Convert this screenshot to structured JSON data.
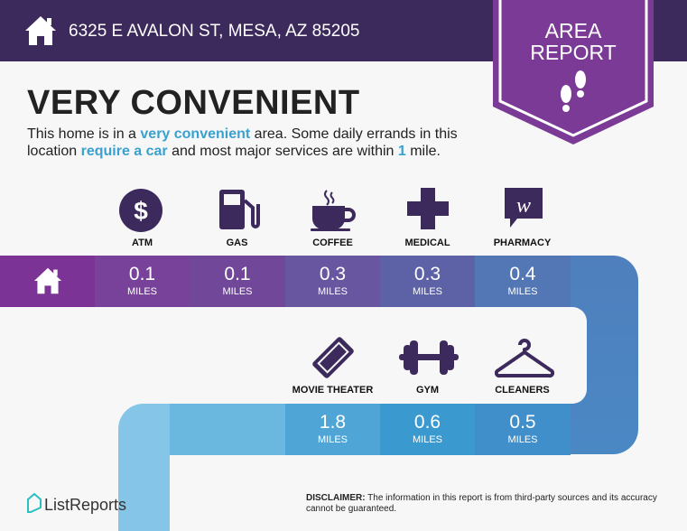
{
  "header": {
    "address": "6325 E AVALON ST, MESA, AZ 85205",
    "icon": "house-icon",
    "badge_line1": "AREA",
    "badge_line2": "REPORT",
    "badge_icon": "footprints-icon"
  },
  "main": {
    "title": "VERY CONVENIENT",
    "desc": {
      "p1": "This home is in a ",
      "h1": "very convenient",
      "p2": " area. Some daily errands in this location ",
      "h2": "require a car",
      "p3": " and most major services are within ",
      "h3": "1",
      "p4": " mile."
    }
  },
  "row1": [
    {
      "label": "ATM",
      "value": "0.1",
      "unit": "MILES",
      "icon": "dollar-icon"
    },
    {
      "label": "GAS",
      "value": "0.1",
      "unit": "MILES",
      "icon": "gas-pump-icon"
    },
    {
      "label": "COFFEE",
      "value": "0.3",
      "unit": "MILES",
      "icon": "coffee-cup-icon"
    },
    {
      "label": "MEDICAL",
      "value": "0.3",
      "unit": "MILES",
      "icon": "medical-cross-icon"
    },
    {
      "label": "PHARMACY",
      "value": "0.4",
      "unit": "MILES",
      "icon": "walgreens-icon"
    }
  ],
  "row2": [
    {
      "label": "MOVIE THEATER",
      "value": "1.8",
      "unit": "MILES",
      "icon": "ticket-icon"
    },
    {
      "label": "GYM",
      "value": "0.6",
      "unit": "MILES",
      "icon": "dumbbell-icon"
    },
    {
      "label": "CLEANERS",
      "value": "0.5",
      "unit": "MILES",
      "icon": "hanger-icon"
    }
  ],
  "footer": {
    "logo": "ListReports",
    "disclaimer_label": "DISCLAIMER:",
    "disclaimer": " The information in this report is from third-party sources and its accuracy cannot be guaranteed."
  },
  "colors": {
    "header": "#3d2a5c",
    "badge": "#7b3a96",
    "icon": "#3d2a5c",
    "accent": "#3aa1cf"
  }
}
